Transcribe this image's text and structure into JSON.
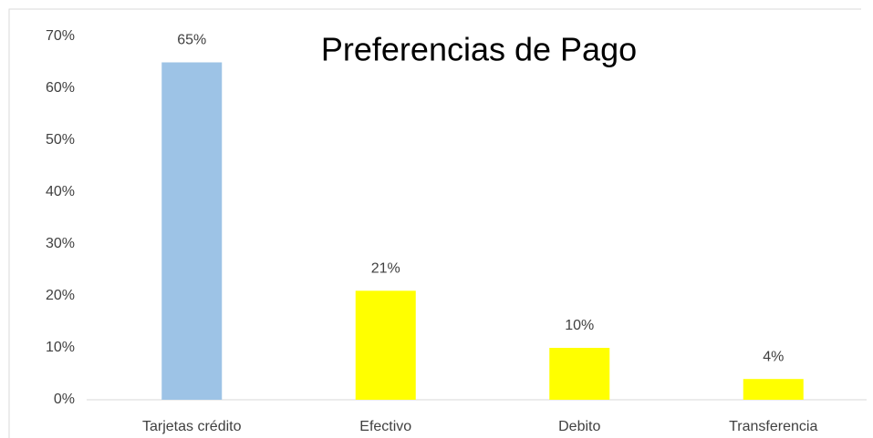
{
  "chart_data": {
    "type": "bar",
    "title": "Preferencias de Pago",
    "categories": [
      "Tarjetas crédito",
      "Efectivo",
      "Debito",
      "Transferencia"
    ],
    "values": [
      65,
      21,
      10,
      4
    ],
    "value_labels": [
      "65%",
      "21%",
      "10%",
      "4%"
    ],
    "colors": [
      "#9dc3e6",
      "#ffff00",
      "#ffff00",
      "#ffff00"
    ],
    "ylim": [
      0,
      70
    ],
    "yticks": [
      {
        "value": 0,
        "label": "0%"
      },
      {
        "value": 10,
        "label": "10%"
      },
      {
        "value": 20,
        "label": "20%"
      },
      {
        "value": 30,
        "label": "30%"
      },
      {
        "value": 40,
        "label": "40%"
      },
      {
        "value": 50,
        "label": "50%"
      },
      {
        "value": 60,
        "label": "60%"
      },
      {
        "value": 70,
        "label": "70%"
      }
    ],
    "grid": false
  }
}
